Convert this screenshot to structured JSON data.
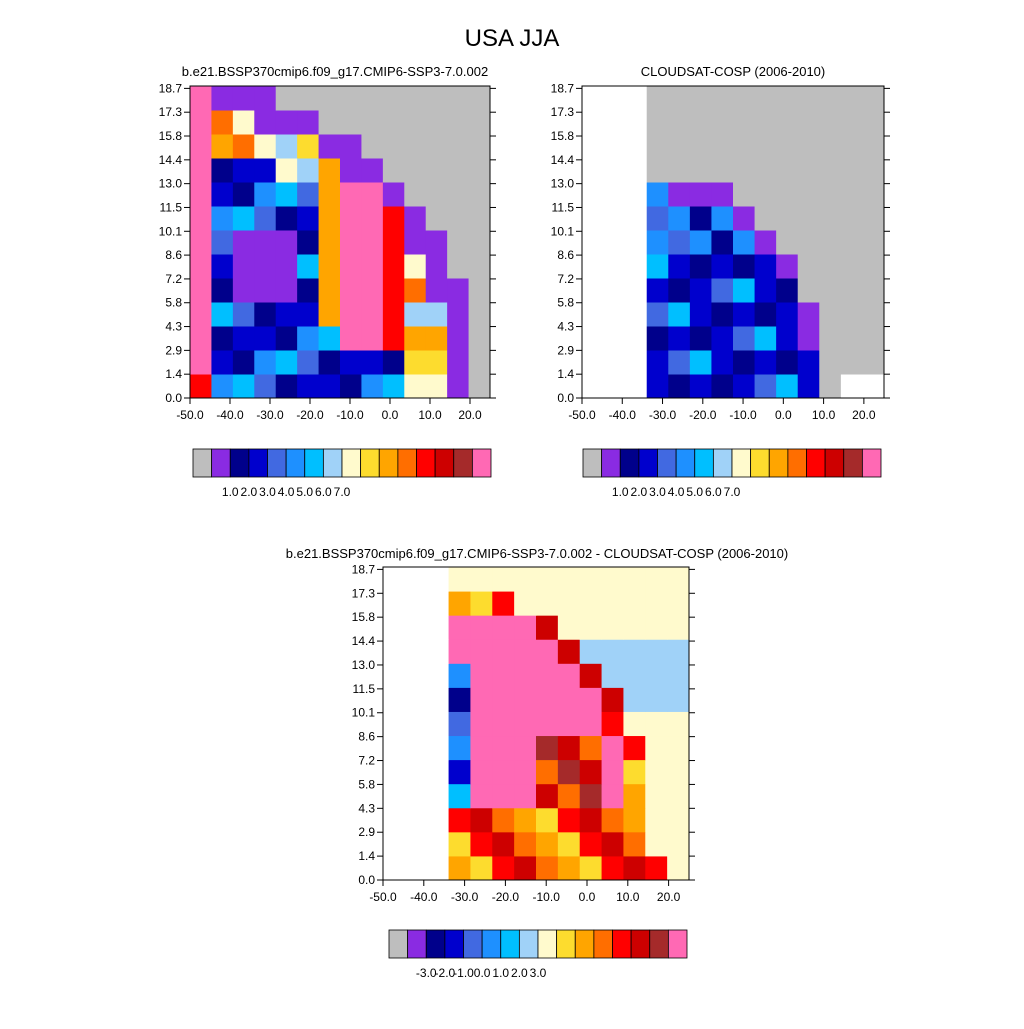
{
  "title": "USA JJA",
  "colors": {
    "levels_model": [
      "#bebebe",
      "#8a2be2",
      "#00008b",
      "#0000cd",
      "#4169e1",
      "#1e90ff",
      "#00bfff",
      "#a0d2f8",
      "#fffacd",
      "#fddc2e",
      "#ffa500",
      "#ff6e00",
      "#ff0000",
      "#cd0000",
      "#a52a2a",
      "#ff69b4"
    ],
    "levels_diff": [
      "#bebebe",
      "#8a2be2",
      "#00008b",
      "#0000cd",
      "#4169e1",
      "#1e90ff",
      "#00bfff",
      "#a0d2f8",
      "#fffacd",
      "#fddc2e",
      "#ffa500",
      "#ff6e00",
      "#ff0000",
      "#cd0000",
      "#a52a2a",
      "#ff69b4"
    ]
  },
  "chart_data": [
    {
      "type": "heatmap",
      "title": "b.e21.BSSP370cmip6.f09_g17.CMIP6-SSP3-7.0.002",
      "x_ticks": [
        "-50.0",
        "-40.0",
        "-30.0",
        "-20.0",
        "-10.0",
        "0.0",
        "10.0",
        "20.0"
      ],
      "y_ticks": [
        "0.0",
        "1.4",
        "2.9",
        "4.3",
        "5.8",
        "7.2",
        "8.6",
        "10.1",
        "11.5",
        "13.0",
        "14.4",
        "15.8",
        "17.3",
        "18.7"
      ],
      "colorbar_labels": [
        "1.0",
        "2.0",
        "3.0",
        "4.0",
        "5.0",
        "6.0",
        "7.0"
      ]
    },
    {
      "type": "heatmap",
      "title": "CLOUDSAT-COSP (2006-2010)",
      "x_ticks": [
        "-50.0",
        "-40.0",
        "-30.0",
        "-20.0",
        "-10.0",
        "0.0",
        "10.0",
        "20.0"
      ],
      "y_ticks": [
        "0.0",
        "1.4",
        "2.9",
        "4.3",
        "5.8",
        "7.2",
        "8.6",
        "10.1",
        "11.5",
        "13.0",
        "14.4",
        "15.8",
        "17.3",
        "18.7"
      ],
      "colorbar_labels": [
        "1.0",
        "2.0",
        "3.0",
        "4.0",
        "5.0",
        "6.0",
        "7.0"
      ]
    },
    {
      "type": "heatmap",
      "title": "b.e21.BSSP370cmip6.f09_g17.CMIP6-SSP3-7.0.002 - CLOUDSAT-COSP (2006-2010)",
      "x_ticks": [
        "-50.0",
        "-40.0",
        "-30.0",
        "-20.0",
        "-10.0",
        "0.0",
        "10.0",
        "20.0"
      ],
      "y_ticks": [
        "0.0",
        "1.4",
        "2.9",
        "4.3",
        "5.8",
        "7.2",
        "8.6",
        "10.1",
        "11.5",
        "13.0",
        "14.4",
        "15.8",
        "17.3",
        "18.7"
      ],
      "colorbar_labels": [
        "-3.0",
        "-2.0",
        "-1.0",
        "0.0",
        "1.0",
        "2.0",
        "3.0"
      ]
    }
  ]
}
